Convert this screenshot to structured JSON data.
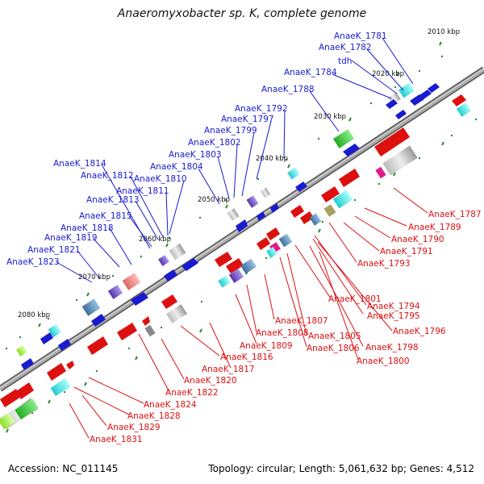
{
  "title": "Anaeromyxobacter sp. K, complete genome",
  "footer": {
    "accession": "Accession: NC_011145",
    "summary": "Topology: circular; Length: 5,061,632 bp; Genes: 4,512"
  },
  "ticks": [
    "2010 kbp",
    "2020 kbp",
    "2030 kbp",
    "2040 kbp",
    "2050 kbp",
    "2060 kbp",
    "2070 kbp",
    "2080 kbp"
  ],
  "top_labels": [
    "AnaeK_1781",
    "AnaeK_1782",
    "tdh",
    "AnaeK_1784",
    "AnaeK_1788",
    "AnaeK_1792",
    "AnaeK_1797",
    "AnaeK_1799",
    "AnaeK_1802",
    "AnaeK_1803",
    "AnaeK_1804",
    "AnaeK_1810",
    "AnaeK_1811",
    "AnaeK_1812",
    "AnaeK_1813",
    "AnaeK_1814",
    "AnaeK_1815",
    "AnaeK_1818",
    "AnaeK_1819",
    "AnaeK_1821",
    "AnaeK_1823"
  ],
  "bottom_labels": [
    "AnaeK_1787",
    "AnaeK_1789",
    "AnaeK_1790",
    "AnaeK_1791",
    "AnaeK_1793",
    "AnaeK_1794",
    "AnaeK_1795",
    "AnaeK_1796",
    "AnaeK_1798",
    "AnaeK_1800",
    "AnaeK_1801",
    "AnaeK_1805",
    "AnaeK_1806",
    "AnaeK_1807",
    "AnaeK_1808",
    "AnaeK_1809",
    "AnaeK_1816",
    "AnaeK_1817",
    "AnaeK_1820",
    "AnaeK_1822",
    "AnaeK_1824",
    "AnaeK_1828",
    "AnaeK_1829",
    "AnaeK_1831"
  ],
  "colors": {
    "forward": "#1a1ad0",
    "reverse": "#dd1010",
    "backbone": "#8a8a8a",
    "tick": "#2e8b2e"
  }
}
